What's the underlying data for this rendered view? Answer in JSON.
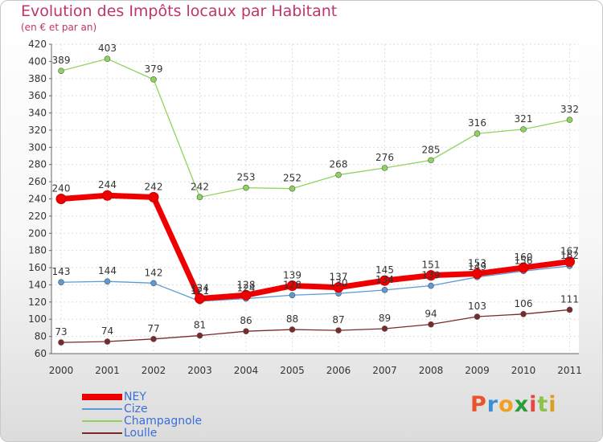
{
  "header": {
    "title": "Evolution des Impôts locaux par Habitant",
    "subtitle": "(en € et par an)"
  },
  "chart_data": {
    "type": "line",
    "title": "Evolution des Impôts locaux par Habitant",
    "subtitle": "(en € et par an)",
    "x": [
      "2000",
      "2001",
      "2002",
      "2003",
      "2004",
      "2005",
      "2006",
      "2007",
      "2008",
      "2009",
      "2010",
      "2011"
    ],
    "ylim": [
      60,
      420
    ],
    "yticks": [
      60,
      80,
      100,
      120,
      140,
      160,
      180,
      200,
      220,
      240,
      260,
      280,
      300,
      320,
      340,
      360,
      380,
      400,
      420
    ],
    "grid": true,
    "legend_position": "bottom-left",
    "series": [
      {
        "name": "NEY",
        "color": "#ee0000",
        "values": [
          240,
          244,
          242,
          124,
          128,
          139,
          137,
          145,
          151,
          153,
          160,
          167
        ]
      },
      {
        "name": "Cize",
        "color": "#5b9bd5",
        "values": [
          143,
          144,
          142,
          121,
          124,
          128,
          130,
          134,
          139,
          149,
          156,
          162
        ]
      },
      {
        "name": "Champagnole",
        "color": "#8fd45a",
        "values": [
          389,
          403,
          379,
          242,
          253,
          252,
          268,
          276,
          285,
          316,
          321,
          332
        ]
      },
      {
        "name": "Loulle",
        "color": "#7a2a2a",
        "values": [
          73,
          74,
          77,
          81,
          86,
          88,
          87,
          89,
          94,
          103,
          106,
          111
        ]
      }
    ]
  },
  "logo": {
    "letters": [
      "P",
      "r",
      "o",
      "x",
      "i",
      "t",
      "i"
    ],
    "colors": [
      "#e8552b",
      "#3b8fd8",
      "#f0a020",
      "#2a9d3a",
      "#e84545",
      "#8bc34a",
      "#d8a020"
    ]
  }
}
